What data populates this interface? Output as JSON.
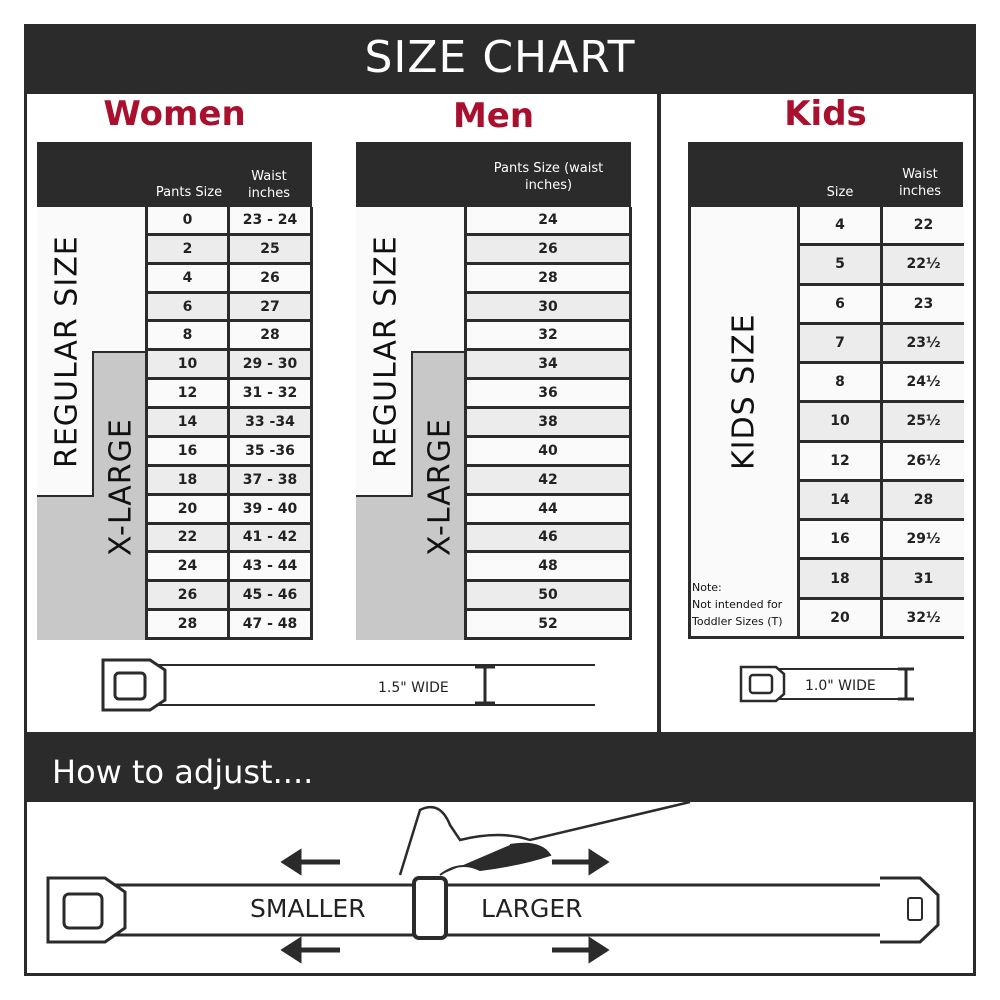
{
  "header": {
    "title": "SIZE CHART"
  },
  "women": {
    "title": "Women",
    "col1": "Pants Size",
    "col2": "Waist inches",
    "regular_label": "REGULAR SIZE",
    "xlarge_label": "X-LARGE",
    "rows": [
      [
        "0",
        "23 - 24"
      ],
      [
        "2",
        "25"
      ],
      [
        "4",
        "26"
      ],
      [
        "6",
        "27"
      ],
      [
        "8",
        "28"
      ],
      [
        "10",
        "29 - 30"
      ],
      [
        "12",
        "31 - 32"
      ],
      [
        "14",
        "33 -34"
      ],
      [
        "16",
        "35 -36"
      ],
      [
        "18",
        "37 - 38"
      ],
      [
        "20",
        "39 - 40"
      ],
      [
        "22",
        "41 - 42"
      ],
      [
        "24",
        "43 - 44"
      ],
      [
        "26",
        "45 - 46"
      ],
      [
        "28",
        "47 - 48"
      ]
    ],
    "belt_width": "1.5\" WIDE"
  },
  "men": {
    "title": "Men",
    "col1": "Pants Size (waist inches)",
    "regular_label": "REGULAR SIZE",
    "xlarge_label": "X-LARGE",
    "rows": [
      "24",
      "26",
      "28",
      "30",
      "32",
      "34",
      "36",
      "38",
      "40",
      "42",
      "44",
      "46",
      "48",
      "50",
      "52"
    ]
  },
  "kids": {
    "title": "Kids",
    "col1": "Size",
    "col2": "Waist inches",
    "size_label": "KIDS SIZE",
    "note_title": "Note:",
    "note_line1": "Not intended for",
    "note_line2": "Toddler Sizes (T)",
    "rows": [
      [
        "4",
        "22"
      ],
      [
        "5",
        "22½"
      ],
      [
        "6",
        "23"
      ],
      [
        "7",
        "23½"
      ],
      [
        "8",
        "24½"
      ],
      [
        "10",
        "25½"
      ],
      [
        "12",
        "26½"
      ],
      [
        "14",
        "28"
      ],
      [
        "16",
        "29½"
      ],
      [
        "18",
        "31"
      ],
      [
        "20",
        "32½"
      ]
    ],
    "belt_width": "1.0\" WIDE"
  },
  "adjust": {
    "title": "How to adjust....",
    "smaller": "SMALLER",
    "larger": "LARGER"
  },
  "colors": {
    "accent": "#a8102e",
    "dark": "#2b2b2b",
    "xlarge_fill": "#c8c8c8"
  }
}
